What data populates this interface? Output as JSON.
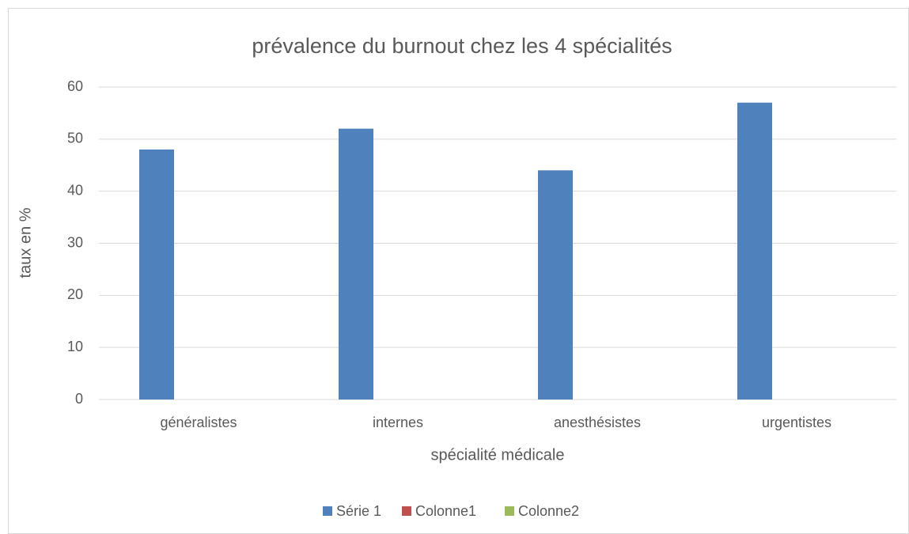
{
  "chart_data": {
    "type": "bar",
    "title": "prévalence du burnout chez les 4 spécialités",
    "x_label": "spécialité médicale",
    "y_label": "taux en %",
    "categories": [
      "généralistes",
      "internes",
      "anesthésistes",
      "urgentistes"
    ],
    "series": [
      {
        "name": "Série 1",
        "color": "#4f81bd",
        "values": [
          48,
          52,
          44,
          57
        ]
      },
      {
        "name": "Colonne1",
        "color": "#c0504d",
        "values": [
          null,
          null,
          null,
          null
        ]
      },
      {
        "name": "Colonne2",
        "color": "#9bbb59",
        "values": [
          null,
          null,
          null,
          null
        ]
      }
    ],
    "ylim": [
      0,
      60
    ],
    "yticks": [
      0,
      10,
      20,
      30,
      40,
      50,
      60
    ],
    "grid": true,
    "legend": "bottom"
  }
}
